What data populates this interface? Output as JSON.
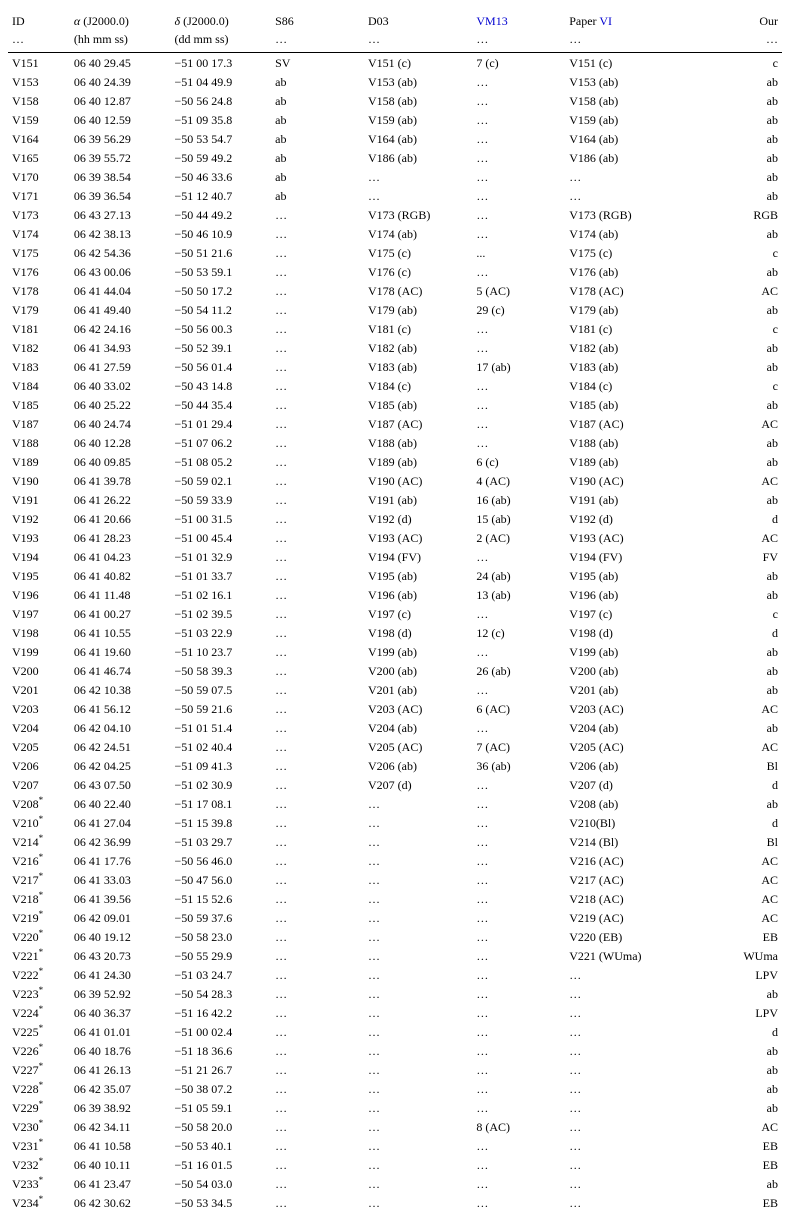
{
  "columns": [
    {
      "h1": "ID",
      "h2": "…",
      "width": "8%"
    },
    {
      "h1": "α (J2000.0)",
      "h2": "(hh mm ss)",
      "width": "13%",
      "greekPrefix": true
    },
    {
      "h1": "δ (J2000.0)",
      "h2": "(dd mm ss)",
      "width": "13%",
      "greekPrefix2": true
    },
    {
      "h1": "S86",
      "h2": "…",
      "width": "12%"
    },
    {
      "h1": "D03",
      "h2": "…",
      "width": "14%"
    },
    {
      "h1": "VM13",
      "h2": "…",
      "width": "12%",
      "link": true
    },
    {
      "h1": "Paper VI",
      "h2": "…",
      "width": "18%",
      "partialLink": "VI",
      "prefix": "Paper "
    },
    {
      "h1": "Our",
      "h2": "…",
      "width": "10%"
    }
  ],
  "rows": [
    [
      "V151",
      "06 40 29.45",
      "−51 00 17.3",
      "SV",
      "V151 (c)",
      "7 (c)",
      "V151 (c)",
      "c"
    ],
    [
      "V153",
      "06 40 24.39",
      "−51 04 49.9",
      "ab",
      "V153 (ab)",
      "…",
      "V153 (ab)",
      "ab"
    ],
    [
      "V158",
      "06 40 12.87",
      "−50 56 24.8",
      "ab",
      "V158 (ab)",
      "…",
      "V158 (ab)",
      "ab"
    ],
    [
      "V159",
      "06 40 12.59",
      "−51 09 35.8",
      "ab",
      "V159 (ab)",
      "…",
      "V159 (ab)",
      "ab"
    ],
    [
      "V164",
      "06 39 56.29",
      "−50 53 54.7",
      "ab",
      "V164 (ab)",
      "…",
      "V164 (ab)",
      "ab"
    ],
    [
      "V165",
      "06 39 55.72",
      "−50 59 49.2",
      "ab",
      "V186 (ab)",
      "…",
      "V186 (ab)",
      "ab"
    ],
    [
      "V170",
      "06 39 38.54",
      "−50 46 33.6",
      "ab",
      "…",
      "…",
      "…",
      "ab"
    ],
    [
      "V171",
      "06 39 36.54",
      "−51 12 40.7",
      "ab",
      "…",
      "…",
      "…",
      "ab"
    ],
    [
      "V173",
      "06 43 27.13",
      "−50 44 49.2",
      "…",
      "V173 (RGB)",
      "…",
      "V173 (RGB)",
      "RGB"
    ],
    [
      "V174",
      "06 42 38.13",
      "−50 46 10.9",
      "…",
      "V174 (ab)",
      "…",
      "V174 (ab)",
      "ab"
    ],
    [
      "V175",
      "06 42 54.36",
      "−50 51 21.6",
      "…",
      "V175 (c)",
      "...",
      "V175 (c)",
      "c"
    ],
    [
      "V176",
      "06 43 00.06",
      "−50 53 59.1",
      "…",
      "V176 (c)",
      "…",
      "V176 (ab)",
      "ab"
    ],
    [
      "V178",
      "06 41 44.04",
      "−50 50 17.2",
      "…",
      "V178 (AC)",
      "5 (AC)",
      "V178 (AC)",
      "AC"
    ],
    [
      "V179",
      "06 41 49.40",
      "−50 54 11.2",
      "…",
      "V179 (ab)",
      "29 (c)",
      "V179 (ab)",
      "ab"
    ],
    [
      "V181",
      "06 42 24.16",
      "−50 56 00.3",
      "…",
      "V181 (c)",
      "…",
      "V181 (c)",
      "c"
    ],
    [
      "V182",
      "06 41 34.93",
      "−50 52 39.1",
      "…",
      "V182 (ab)",
      "…",
      "V182 (ab)",
      "ab"
    ],
    [
      "V183",
      "06 41 27.59",
      "−50 56 01.4",
      "…",
      "V183 (ab)",
      "17 (ab)",
      "V183 (ab)",
      "ab"
    ],
    [
      "V184",
      "06 40 33.02",
      "−50 43 14.8",
      "…",
      "V184 (c)",
      "…",
      "V184 (c)",
      "c"
    ],
    [
      "V185",
      "06 40 25.22",
      "−50 44 35.4",
      "…",
      "V185 (ab)",
      "…",
      "V185 (ab)",
      "ab"
    ],
    [
      "V187",
      "06 40 24.74",
      "−51 01 29.4",
      "…",
      "V187 (AC)",
      "…",
      "V187 (AC)",
      "AC"
    ],
    [
      "V188",
      "06 40 12.28",
      "−51 07 06.2",
      "…",
      "V188 (ab)",
      "…",
      "V188 (ab)",
      "ab"
    ],
    [
      "V189",
      "06 40 09.85",
      "−51 08 05.2",
      "…",
      "V189 (ab)",
      "6 (c)",
      "V189 (ab)",
      "ab"
    ],
    [
      "V190",
      "06 41 39.78",
      "−50 59 02.1",
      "…",
      "V190 (AC)",
      "4 (AC)",
      "V190 (AC)",
      "AC"
    ],
    [
      "V191",
      "06 41 26.22",
      "−50 59 33.9",
      "…",
      "V191 (ab)",
      "16 (ab)",
      "V191 (ab)",
      "ab"
    ],
    [
      "V192",
      "06 41 20.66",
      "−51 00 31.5",
      "…",
      "V192 (d)",
      "15 (ab)",
      "V192 (d)",
      "d"
    ],
    [
      "V193",
      "06 41 28.23",
      "−51 00 45.4",
      "…",
      "V193 (AC)",
      "2 (AC)",
      "V193 (AC)",
      "AC"
    ],
    [
      "V194",
      "06 41 04.23",
      "−51 01 32.9",
      "…",
      "V194 (FV)",
      "…",
      "V194 (FV)",
      "FV"
    ],
    [
      "V195",
      "06 41 40.82",
      "−51 01 33.7",
      "…",
      "V195 (ab)",
      "24 (ab)",
      "V195 (ab)",
      "ab"
    ],
    [
      "V196",
      "06 41 11.48",
      "−51 02 16.1",
      "…",
      "V196 (ab)",
      "13 (ab)",
      "V196 (ab)",
      "ab"
    ],
    [
      "V197",
      "06 41 00.27",
      "−51 02 39.5",
      "…",
      "V197 (c)",
      "…",
      "V197 (c)",
      "c"
    ],
    [
      "V198",
      "06 41 10.55",
      "−51 03 22.9",
      "…",
      "V198 (d)",
      "12 (c)",
      "V198 (d)",
      "d"
    ],
    [
      "V199",
      "06 41 19.60",
      "−51 10 23.7",
      "…",
      "V199 (ab)",
      "…",
      "V199 (ab)",
      "ab"
    ],
    [
      "V200",
      "06 41 46.74",
      "−50 58 39.3",
      "…",
      "V200 (ab)",
      "26 (ab)",
      "V200 (ab)",
      "ab"
    ],
    [
      "V201",
      "06 42 10.38",
      "−50 59 07.5",
      "…",
      "V201 (ab)",
      "…",
      "V201 (ab)",
      "ab"
    ],
    [
      "V203",
      "06 41 56.12",
      "−50 59 21.6",
      "…",
      "V203 (AC)",
      "6 (AC)",
      "V203 (AC)",
      "AC"
    ],
    [
      "V204",
      "06 42 04.10",
      "−51 01 51.4",
      "…",
      "V204 (ab)",
      "…",
      "V204 (ab)",
      "ab"
    ],
    [
      "V205",
      "06 42 24.51",
      "−51 02 40.4",
      "…",
      "V205 (AC)",
      "7 (AC)",
      "V205 (AC)",
      "AC"
    ],
    [
      "V206",
      "06 42 04.25",
      "−51 09 41.3",
      "…",
      "V206 (ab)",
      "36 (ab)",
      "V206 (ab)",
      "Bl"
    ],
    [
      "V207",
      "06 43 07.50",
      "−51 02 30.9",
      "…",
      "V207 (d)",
      "…",
      "V207 (d)",
      "d"
    ],
    [
      "V208*",
      "06 40 22.40",
      "−51 17 08.1",
      "…",
      "…",
      "…",
      "V208 (ab)",
      "ab"
    ],
    [
      "V210*",
      "06 41 27.04",
      "−51 15 39.8",
      "…",
      "…",
      "…",
      "V210(Bl)",
      "d"
    ],
    [
      "V214*",
      "06 42 36.99",
      "−51 03 29.7",
      "…",
      "…",
      "…",
      "V214 (Bl)",
      "Bl"
    ],
    [
      "V216*",
      "06 41 17.76",
      "−50 56 46.0",
      "…",
      "…",
      "…",
      "V216 (AC)",
      "AC"
    ],
    [
      "V217*",
      "06 41 33.03",
      "−50 47 56.0",
      "…",
      "…",
      "…",
      "V217 (AC)",
      "AC"
    ],
    [
      "V218*",
      "06 41 39.56",
      "−51 15 52.6",
      "…",
      "…",
      "…",
      "V218 (AC)",
      "AC"
    ],
    [
      "V219*",
      "06 42 09.01",
      "−50 59 37.6",
      "…",
      "…",
      "…",
      "V219 (AC)",
      "AC"
    ],
    [
      "V220*",
      "06 40 19.12",
      "−50 58 23.0",
      "…",
      "…",
      "…",
      "V220 (EB)",
      "EB"
    ],
    [
      "V221*",
      "06 43 20.73",
      "−50 55 29.9",
      "…",
      "…",
      "…",
      "V221 (WUma)",
      "WUma"
    ],
    [
      "V222*",
      "06 41 24.30",
      "−51 03 24.7",
      "…",
      "…",
      "…",
      "…",
      "LPV"
    ],
    [
      "V223*",
      "06 39 52.92",
      "−50 54 28.3",
      "…",
      "…",
      "…",
      "…",
      "ab"
    ],
    [
      "V224*",
      "06 40 36.37",
      "−51 16 42.2",
      "…",
      "…",
      "…",
      "…",
      "LPV"
    ],
    [
      "V225*",
      "06 41 01.01",
      "−51 00 02.4",
      "…",
      "…",
      "…",
      "…",
      "d"
    ],
    [
      "V226*",
      "06 40 18.76",
      "−51 18 36.6",
      "…",
      "…",
      "…",
      "…",
      "ab"
    ],
    [
      "V227*",
      "06 41 26.13",
      "−51 21 26.7",
      "…",
      "…",
      "…",
      "…",
      "ab"
    ],
    [
      "V228*",
      "06 42 35.07",
      "−50 38 07.2",
      "…",
      "…",
      "…",
      "…",
      "ab"
    ],
    [
      "V229*",
      "06 39 38.92",
      "−51 05 59.1",
      "…",
      "…",
      "…",
      "…",
      "ab"
    ],
    [
      "V230*",
      "06 42 34.11",
      "−50 58 20.0",
      "…",
      "…",
      "8 (AC)",
      "…",
      "AC"
    ],
    [
      "V231*",
      "06 41 10.58",
      "−50 53 40.1",
      "…",
      "…",
      "…",
      "…",
      "EB"
    ],
    [
      "V232*",
      "06 40 10.11",
      "−51 16 01.5",
      "…",
      "…",
      "…",
      "…",
      "EB"
    ],
    [
      "V233*",
      "06 41 23.47",
      "−50 54 03.0",
      "…",
      "…",
      "…",
      "…",
      "ab"
    ],
    [
      "V234*",
      "06 42 30.62",
      "−50 53 34.5",
      "…",
      "…",
      "…",
      "…",
      "EB"
    ]
  ]
}
